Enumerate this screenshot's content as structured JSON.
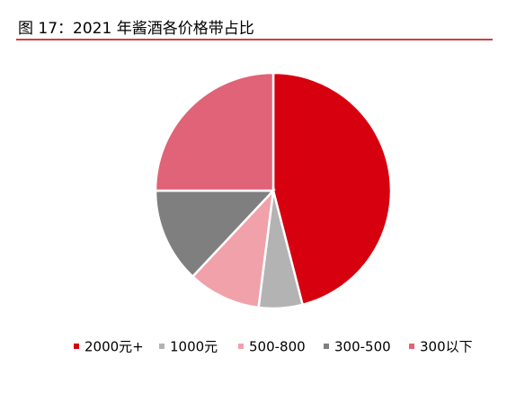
{
  "chart_data": {
    "type": "pie",
    "title": "图 17：2021 年酱酒各价格带占比",
    "categories": [
      "2000元+",
      "1000元",
      "500-800",
      "300-500",
      "300以下"
    ],
    "values": [
      46,
      6,
      10,
      13,
      25
    ],
    "colors": [
      "#d7000f",
      "#b3b3b3",
      "#f0a1aa",
      "#7f7f7f",
      "#e06377"
    ],
    "legend": "bottom"
  }
}
